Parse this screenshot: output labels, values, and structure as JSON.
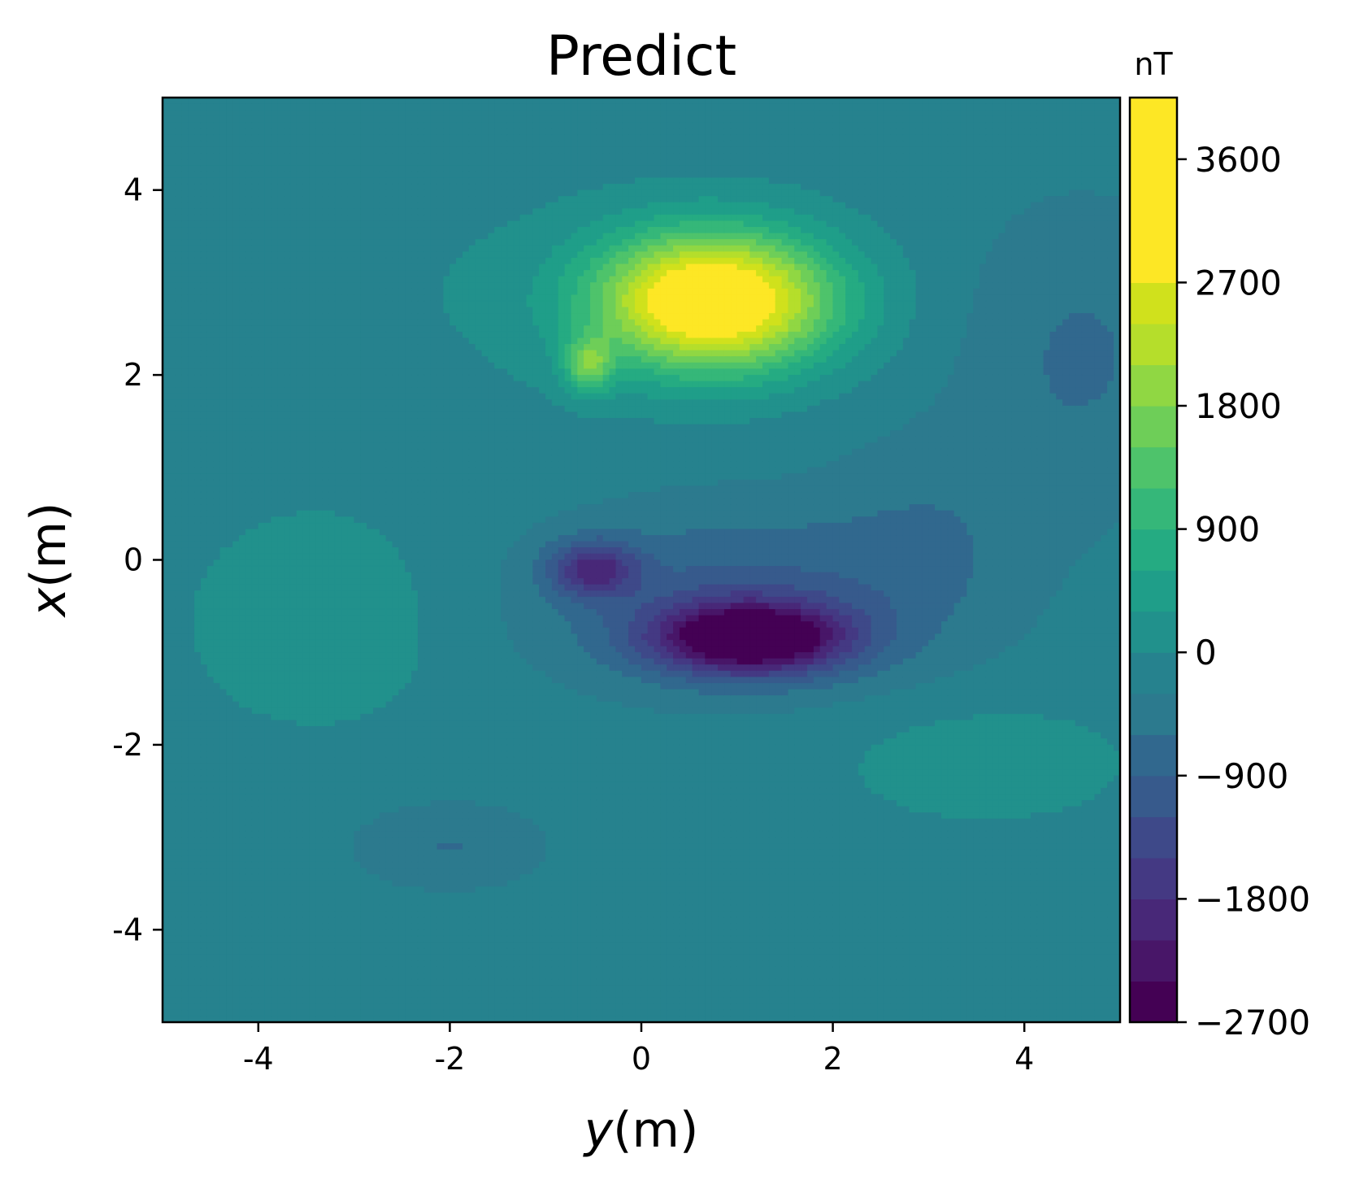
{
  "chart_data": {
    "type": "heatmap",
    "subtype": "filled-contour",
    "title": "Predict",
    "xlabel_var": "y",
    "xlabel_unit": "(m)",
    "ylabel_var": "x",
    "ylabel_unit": "(m)",
    "xlim": [
      -5,
      5
    ],
    "ylim": [
      -5,
      5
    ],
    "xticks": [
      -4,
      -2,
      0,
      2,
      4
    ],
    "xtick_labels": [
      "-4",
      "-2",
      "0",
      "2",
      "4"
    ],
    "yticks": [
      4,
      2,
      0,
      -2,
      -4
    ],
    "ytick_labels": [
      "4",
      "2",
      "0",
      "-2",
      "-4"
    ],
    "colorbar": {
      "unit": "nT",
      "colormap": "viridis",
      "range": [
        -2700,
        4050
      ],
      "ticks": [
        3600,
        2700,
        1800,
        900,
        0,
        -900,
        -1800,
        -2700
      ],
      "tick_labels": [
        "3600",
        "2700",
        "1800",
        "900",
        "0",
        "−900",
        "−1800",
        "−2700"
      ],
      "levels": [
        -2700,
        -2400,
        -2100,
        -1800,
        -1500,
        -1200,
        -900,
        -600,
        -300,
        0,
        300,
        600,
        900,
        1200,
        1500,
        1800,
        2100,
        2400,
        2700,
        4050
      ],
      "colors": [
        "#440154",
        "#481668",
        "#482878",
        "#443983",
        "#3e4989",
        "#375a8c",
        "#31688e",
        "#2c7a8e",
        "#26828e",
        "#21918c",
        "#1f9e89",
        "#25ab82",
        "#35b779",
        "#4ec36b",
        "#6ece58",
        "#90d743",
        "#b5de2b",
        "#d0e11c",
        "#fde725"
      ]
    },
    "grid": false,
    "features": [
      {
        "kind": "positive anomaly",
        "center": [
          0.8,
          2.8
        ],
        "peak": 3600
      },
      {
        "kind": "negative anomaly",
        "center": [
          1.1,
          -0.9
        ],
        "peak": -2700
      }
    ]
  }
}
